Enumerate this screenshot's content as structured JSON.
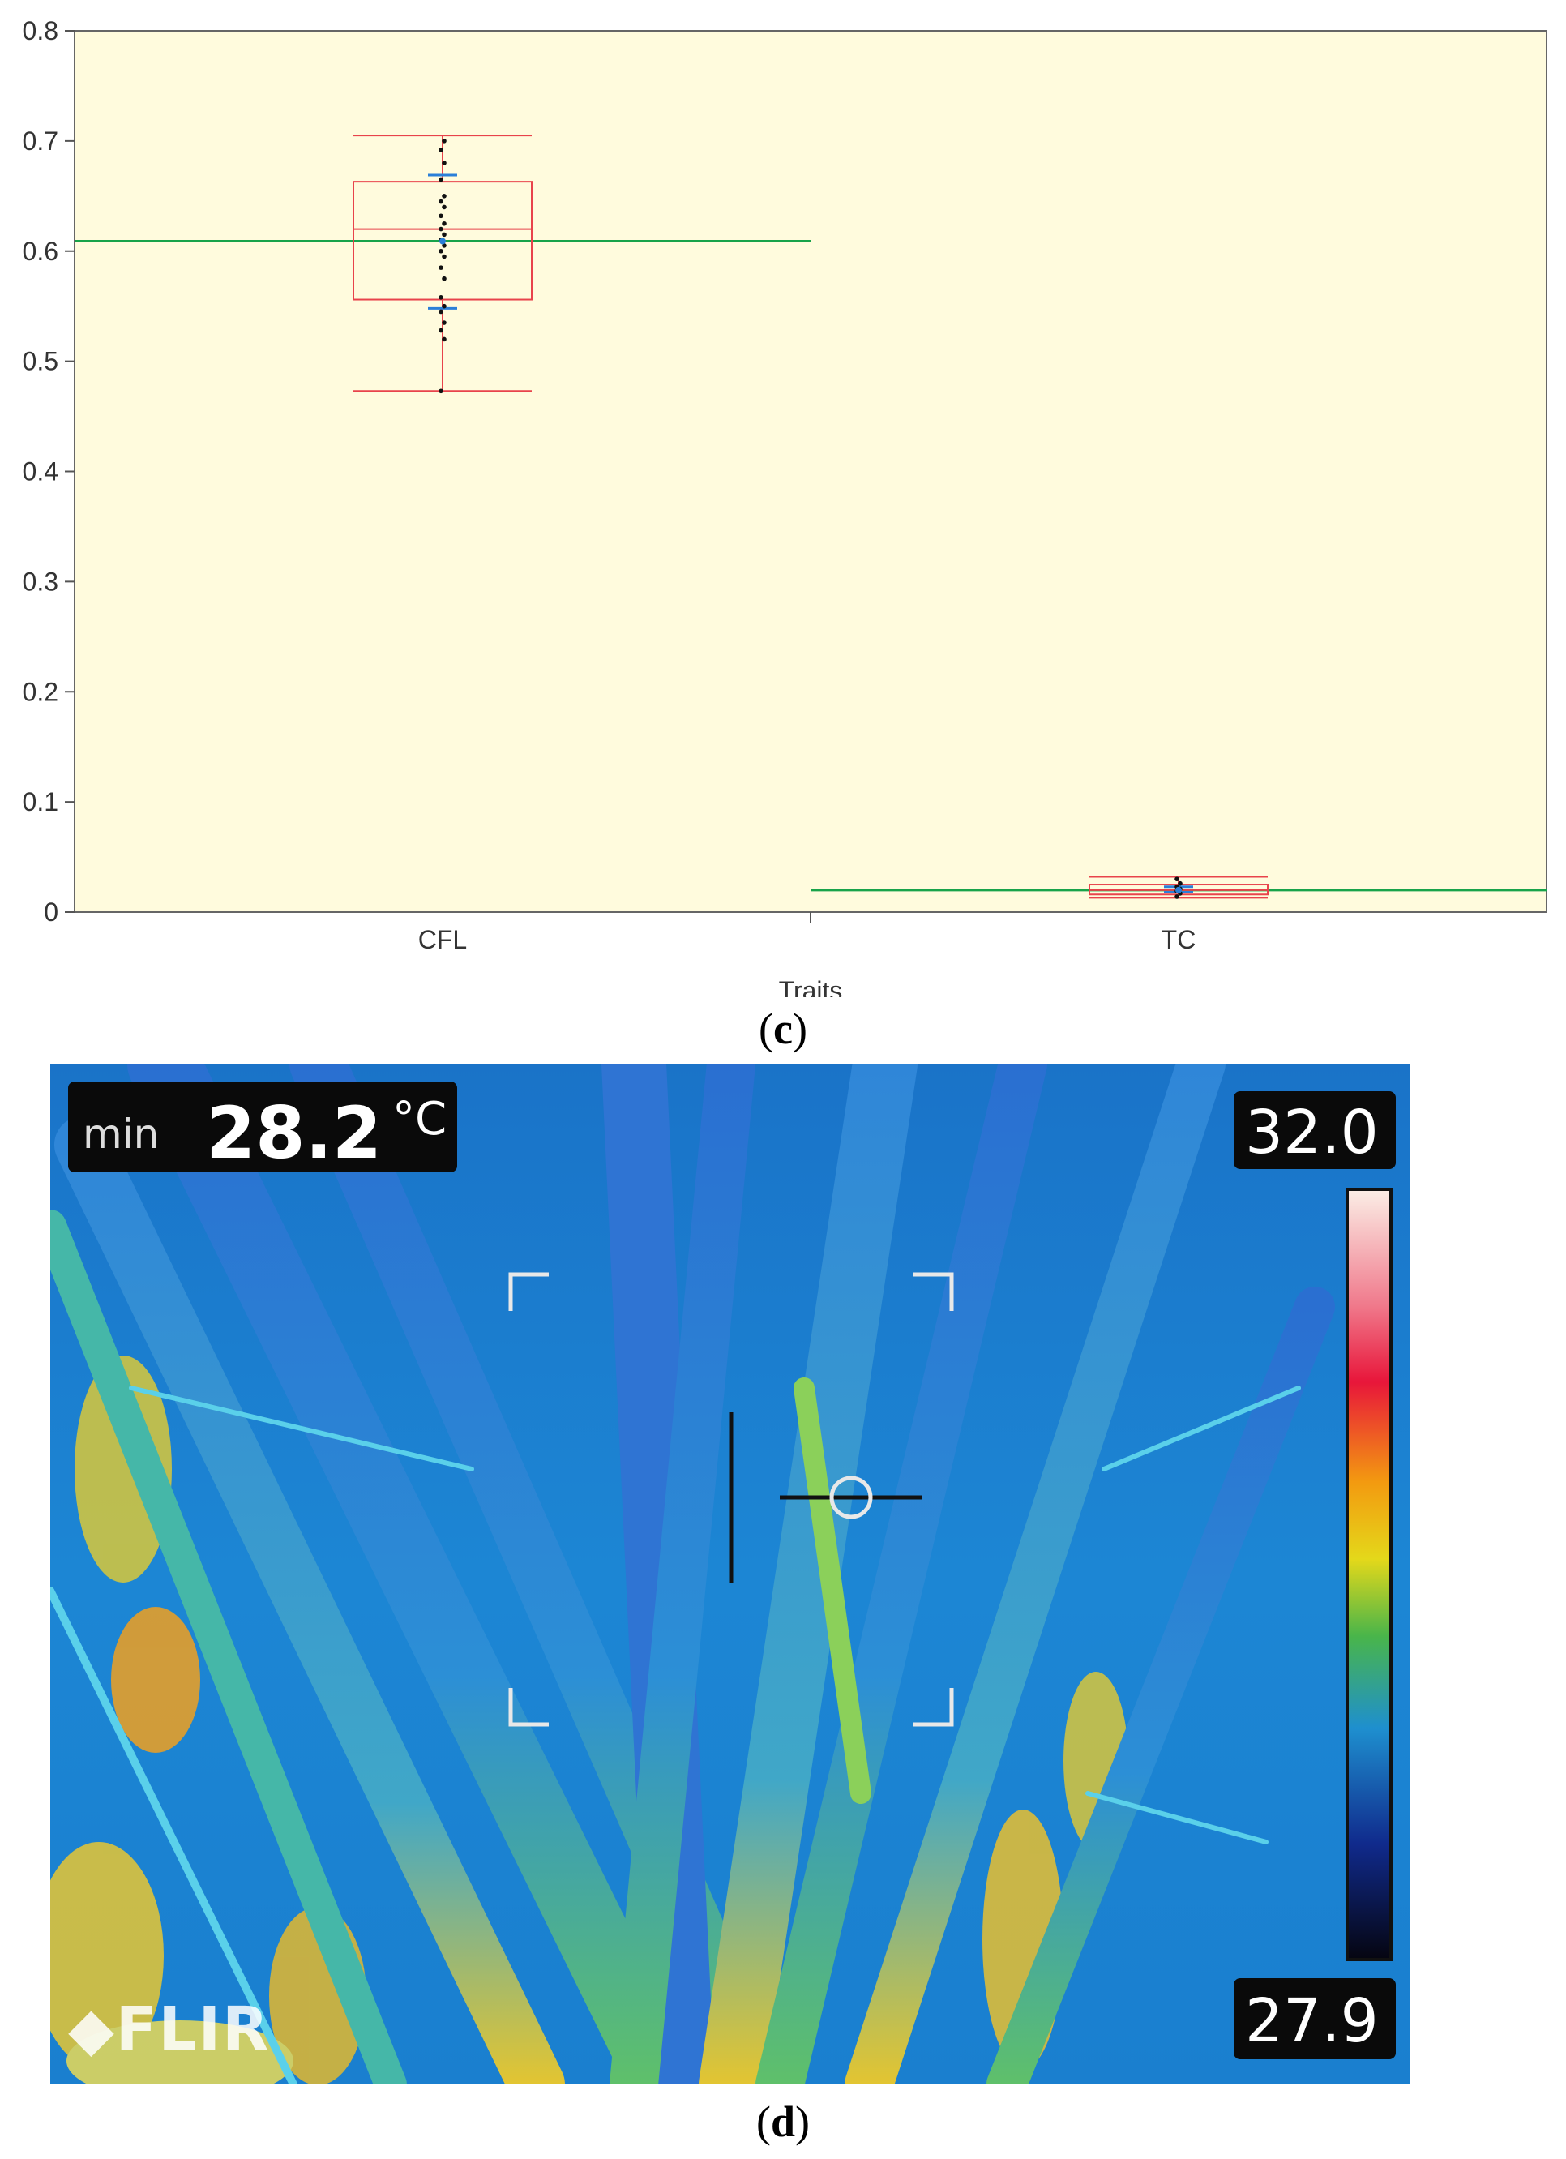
{
  "chart_data": {
    "type": "box",
    "categories": [
      "CFL",
      "TC"
    ],
    "xlabel": "Traits",
    "ylabel": "",
    "ylim": [
      0,
      0.8
    ],
    "yticks": [
      "0",
      "0.1",
      "0.2",
      "0.3",
      "0.4",
      "0.5",
      "0.6",
      "0.7",
      "0.8"
    ],
    "background": "#fffbdd",
    "box_color": "#e8434b",
    "mean_line_color": "#18a34a",
    "boxes": [
      {
        "category": "CFL",
        "min": 0.473,
        "q1": 0.556,
        "median": 0.62,
        "q3": 0.663,
        "max": 0.705,
        "group_mean": 0.609,
        "ci_ticks": [
          0.548,
          0.669
        ],
        "points": [
          0.473,
          0.52,
          0.528,
          0.535,
          0.545,
          0.55,
          0.558,
          0.575,
          0.585,
          0.595,
          0.6,
          0.605,
          0.61,
          0.615,
          0.62,
          0.625,
          0.632,
          0.64,
          0.645,
          0.65,
          0.665,
          0.68,
          0.692,
          0.7
        ]
      },
      {
        "category": "TC",
        "min": 0.013,
        "q1": 0.016,
        "median": 0.02,
        "q3": 0.025,
        "max": 0.032,
        "group_mean": 0.02,
        "ci_ticks": [
          0.018,
          0.023
        ],
        "points": [
          0.014,
          0.017,
          0.019,
          0.021,
          0.023,
          0.026,
          0.03
        ]
      }
    ]
  },
  "captions": {
    "c": "c",
    "d": "d"
  },
  "thermal_image": {
    "min_label": "min",
    "min_value": "28.2",
    "unit": "°C",
    "scale_max": "32.0",
    "scale_min": "27.9",
    "logo": "FLIR"
  }
}
